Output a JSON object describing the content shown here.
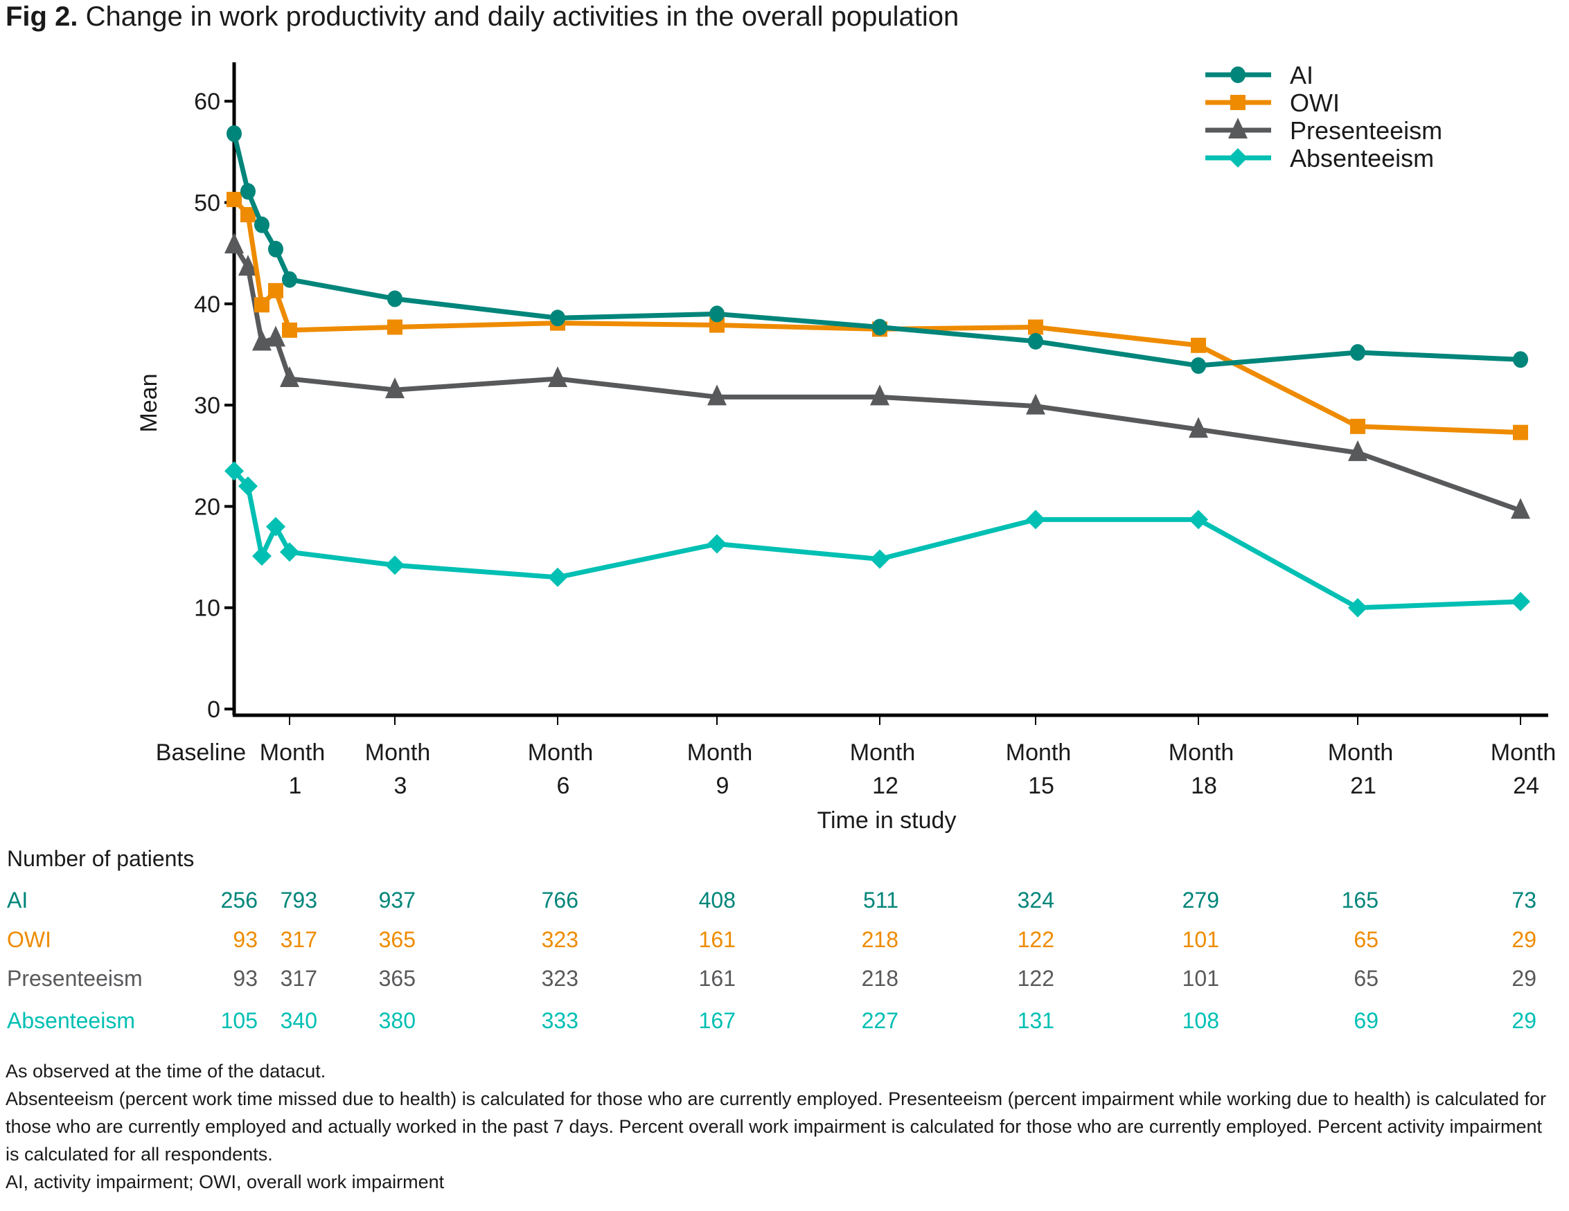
{
  "figure": {
    "label": "Fig 2.",
    "title": "Change in work productivity and daily activities in the overall population"
  },
  "chart_data": {
    "type": "line",
    "title": "Change in work productivity and daily activities in the overall population",
    "xlabel": "Time in study",
    "ylabel": "Mean",
    "ylim": [
      0,
      64
    ],
    "yticks": [
      0,
      10,
      20,
      30,
      40,
      50,
      60
    ],
    "grid": false,
    "legend_position": "top-right",
    "x_tick_labels": [
      {
        "line1": "Baseline",
        "line2": ""
      },
      {
        "line1": "Month",
        "line2": "1"
      },
      {
        "line1": "Month",
        "line2": "3"
      },
      {
        "line1": "Month",
        "line2": "6"
      },
      {
        "line1": "Month",
        "line2": "9"
      },
      {
        "line1": "Month",
        "line2": "12"
      },
      {
        "line1": "Month",
        "line2": "15"
      },
      {
        "line1": "Month",
        "line2": "18"
      },
      {
        "line1": "Month",
        "line2": "21"
      },
      {
        "line1": "Month",
        "line2": "24"
      }
    ],
    "x_months": [
      0,
      0.25,
      0.5,
      0.75,
      1,
      3,
      6,
      9,
      12,
      15,
      18,
      21,
      24
    ],
    "series": [
      {
        "name": "AI",
        "color": "#00857A",
        "marker": "circle",
        "values": [
          56.8,
          51.1,
          47.8,
          45.4,
          42.4,
          40.5,
          38.6,
          39.0,
          37.7,
          36.3,
          33.9,
          35.2,
          34.5
        ]
      },
      {
        "name": "OWI",
        "color": "#EE8B00",
        "marker": "square",
        "values": [
          50.3,
          48.8,
          39.9,
          41.3,
          37.4,
          37.7,
          38.1,
          37.9,
          37.5,
          37.7,
          35.9,
          27.9,
          27.3
        ]
      },
      {
        "name": "Presenteeism",
        "color": "#58595B",
        "marker": "triangle",
        "values": [
          45.8,
          43.6,
          36.2,
          36.6,
          32.6,
          31.5,
          32.6,
          30.8,
          30.8,
          29.9,
          27.6,
          25.3,
          19.6
        ]
      },
      {
        "name": "Absenteeism",
        "color": "#00BFB3",
        "marker": "diamond",
        "values": [
          23.5,
          22.0,
          15.1,
          18.0,
          15.5,
          14.2,
          13.0,
          16.3,
          14.8,
          18.7,
          18.7,
          10.0,
          10.6
        ]
      }
    ]
  },
  "patients_table": {
    "heading": "Number of patients",
    "rows": [
      {
        "label": "AI",
        "color": "#00857A",
        "values": [
          "256",
          "793",
          "937",
          "766",
          "408",
          "511",
          "324",
          "279",
          "165",
          "73"
        ]
      },
      {
        "label": "OWI",
        "color": "#EE8B00",
        "values": [
          "93",
          "317",
          "365",
          "323",
          "161",
          "218",
          "122",
          "101",
          "65",
          "29"
        ]
      },
      {
        "label": "Presenteeism",
        "color": "#58595B",
        "values": [
          "93",
          "317",
          "365",
          "323",
          "161",
          "218",
          "122",
          "101",
          "65",
          "29"
        ]
      },
      {
        "label": "Absenteeism",
        "color": "#00BFB3",
        "values": [
          "105",
          "340",
          "380",
          "333",
          "167",
          "227",
          "131",
          "108",
          "69",
          "29"
        ]
      }
    ]
  },
  "notes": [
    "As observed at the time of the datacut.",
    "Absenteeism (percent work time missed due to health) is calculated for those who are currently employed. Presenteeism (percent impairment while working due to health) is calculated for those who are currently employed and actually worked in the past 7 days. Percent overall work impairment is calculated for those who are currently employed. Percent activity impairment is calculated for all respondents.",
    "AI, activity impairment; OWI, overall work impairment"
  ]
}
